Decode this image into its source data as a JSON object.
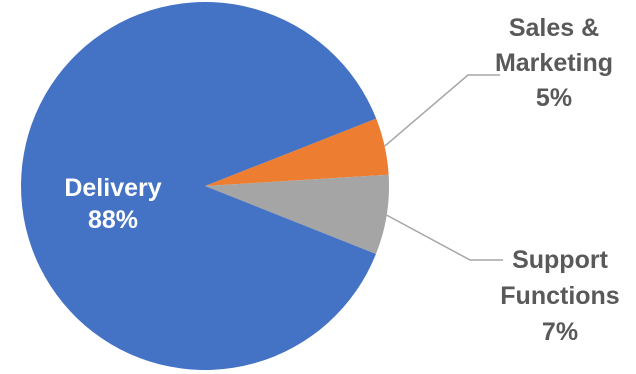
{
  "chart_data": {
    "type": "pie",
    "title": "",
    "slices": [
      {
        "name": "Delivery",
        "value": 88,
        "value_label": "88%",
        "color": "#4472C4"
      },
      {
        "name": "Sales & Marketing",
        "value": 5,
        "value_label": "5%",
        "color": "#ED7D31"
      },
      {
        "name": "Support Functions",
        "value": 7,
        "value_label": "7%",
        "color": "#A5A5A5"
      }
    ],
    "label_colors": {
      "inside": "#ffffff",
      "outside": "#595959",
      "leader": "#a6a6a6"
    }
  }
}
